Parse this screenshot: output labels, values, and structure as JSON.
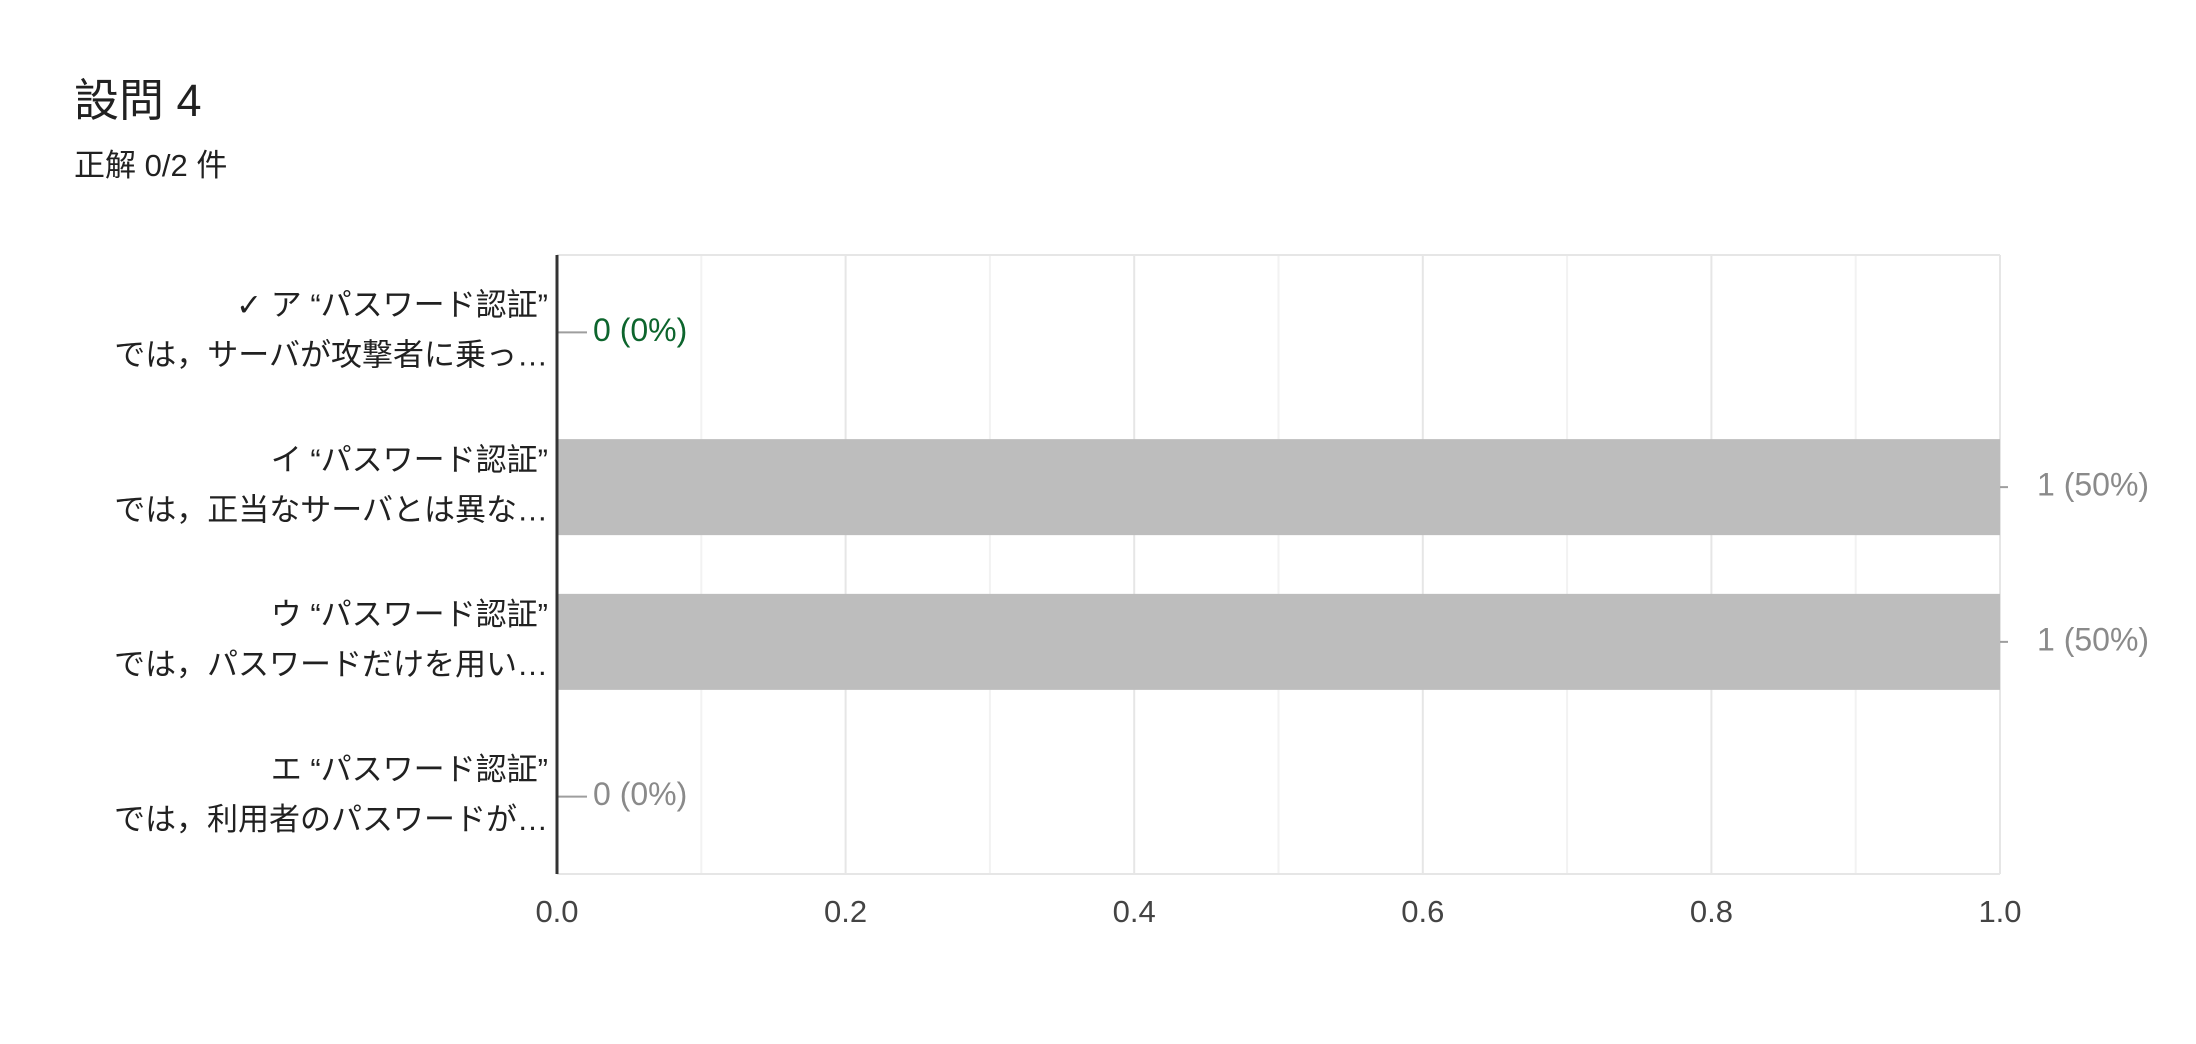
{
  "chart_data": {
    "type": "bar",
    "orientation": "horizontal",
    "title": "設問 4",
    "subtitle": "正解 0/2 件",
    "categories": [
      [
        "✓ ア “パスワード認証”",
        "では，サーバが攻撃者に乗っ…"
      ],
      [
        "イ “パスワード認証”",
        "では，正当なサーバとは異な…"
      ],
      [
        "ウ “パスワード認証”",
        "では，パスワードだけを用い…"
      ],
      [
        "エ “パスワード認証”",
        "では，利用者のパスワードが…"
      ]
    ],
    "values": [
      0,
      1,
      1,
      0
    ],
    "value_labels": [
      "0 (0%)",
      "1 (50%)",
      "1 (50%)",
      "0 (0%)"
    ],
    "value_label_colors": [
      "#0d652d",
      "#8a8a8a",
      "#8a8a8a",
      "#8a8a8a"
    ],
    "color": "#bdbdbd",
    "xlim": [
      0,
      1
    ],
    "xticks": [
      {
        "value": 0,
        "label": "0.0"
      },
      {
        "value": 0.2,
        "label": "0.2"
      },
      {
        "value": 0.4,
        "label": "0.4"
      },
      {
        "value": 0.6,
        "label": "0.6"
      },
      {
        "value": 0.8,
        "label": "0.8"
      },
      {
        "value": 1,
        "label": "1.0"
      }
    ],
    "minor_xticks": [
      0.1,
      0.3,
      0.5,
      0.7,
      0.9
    ],
    "grid": true
  }
}
